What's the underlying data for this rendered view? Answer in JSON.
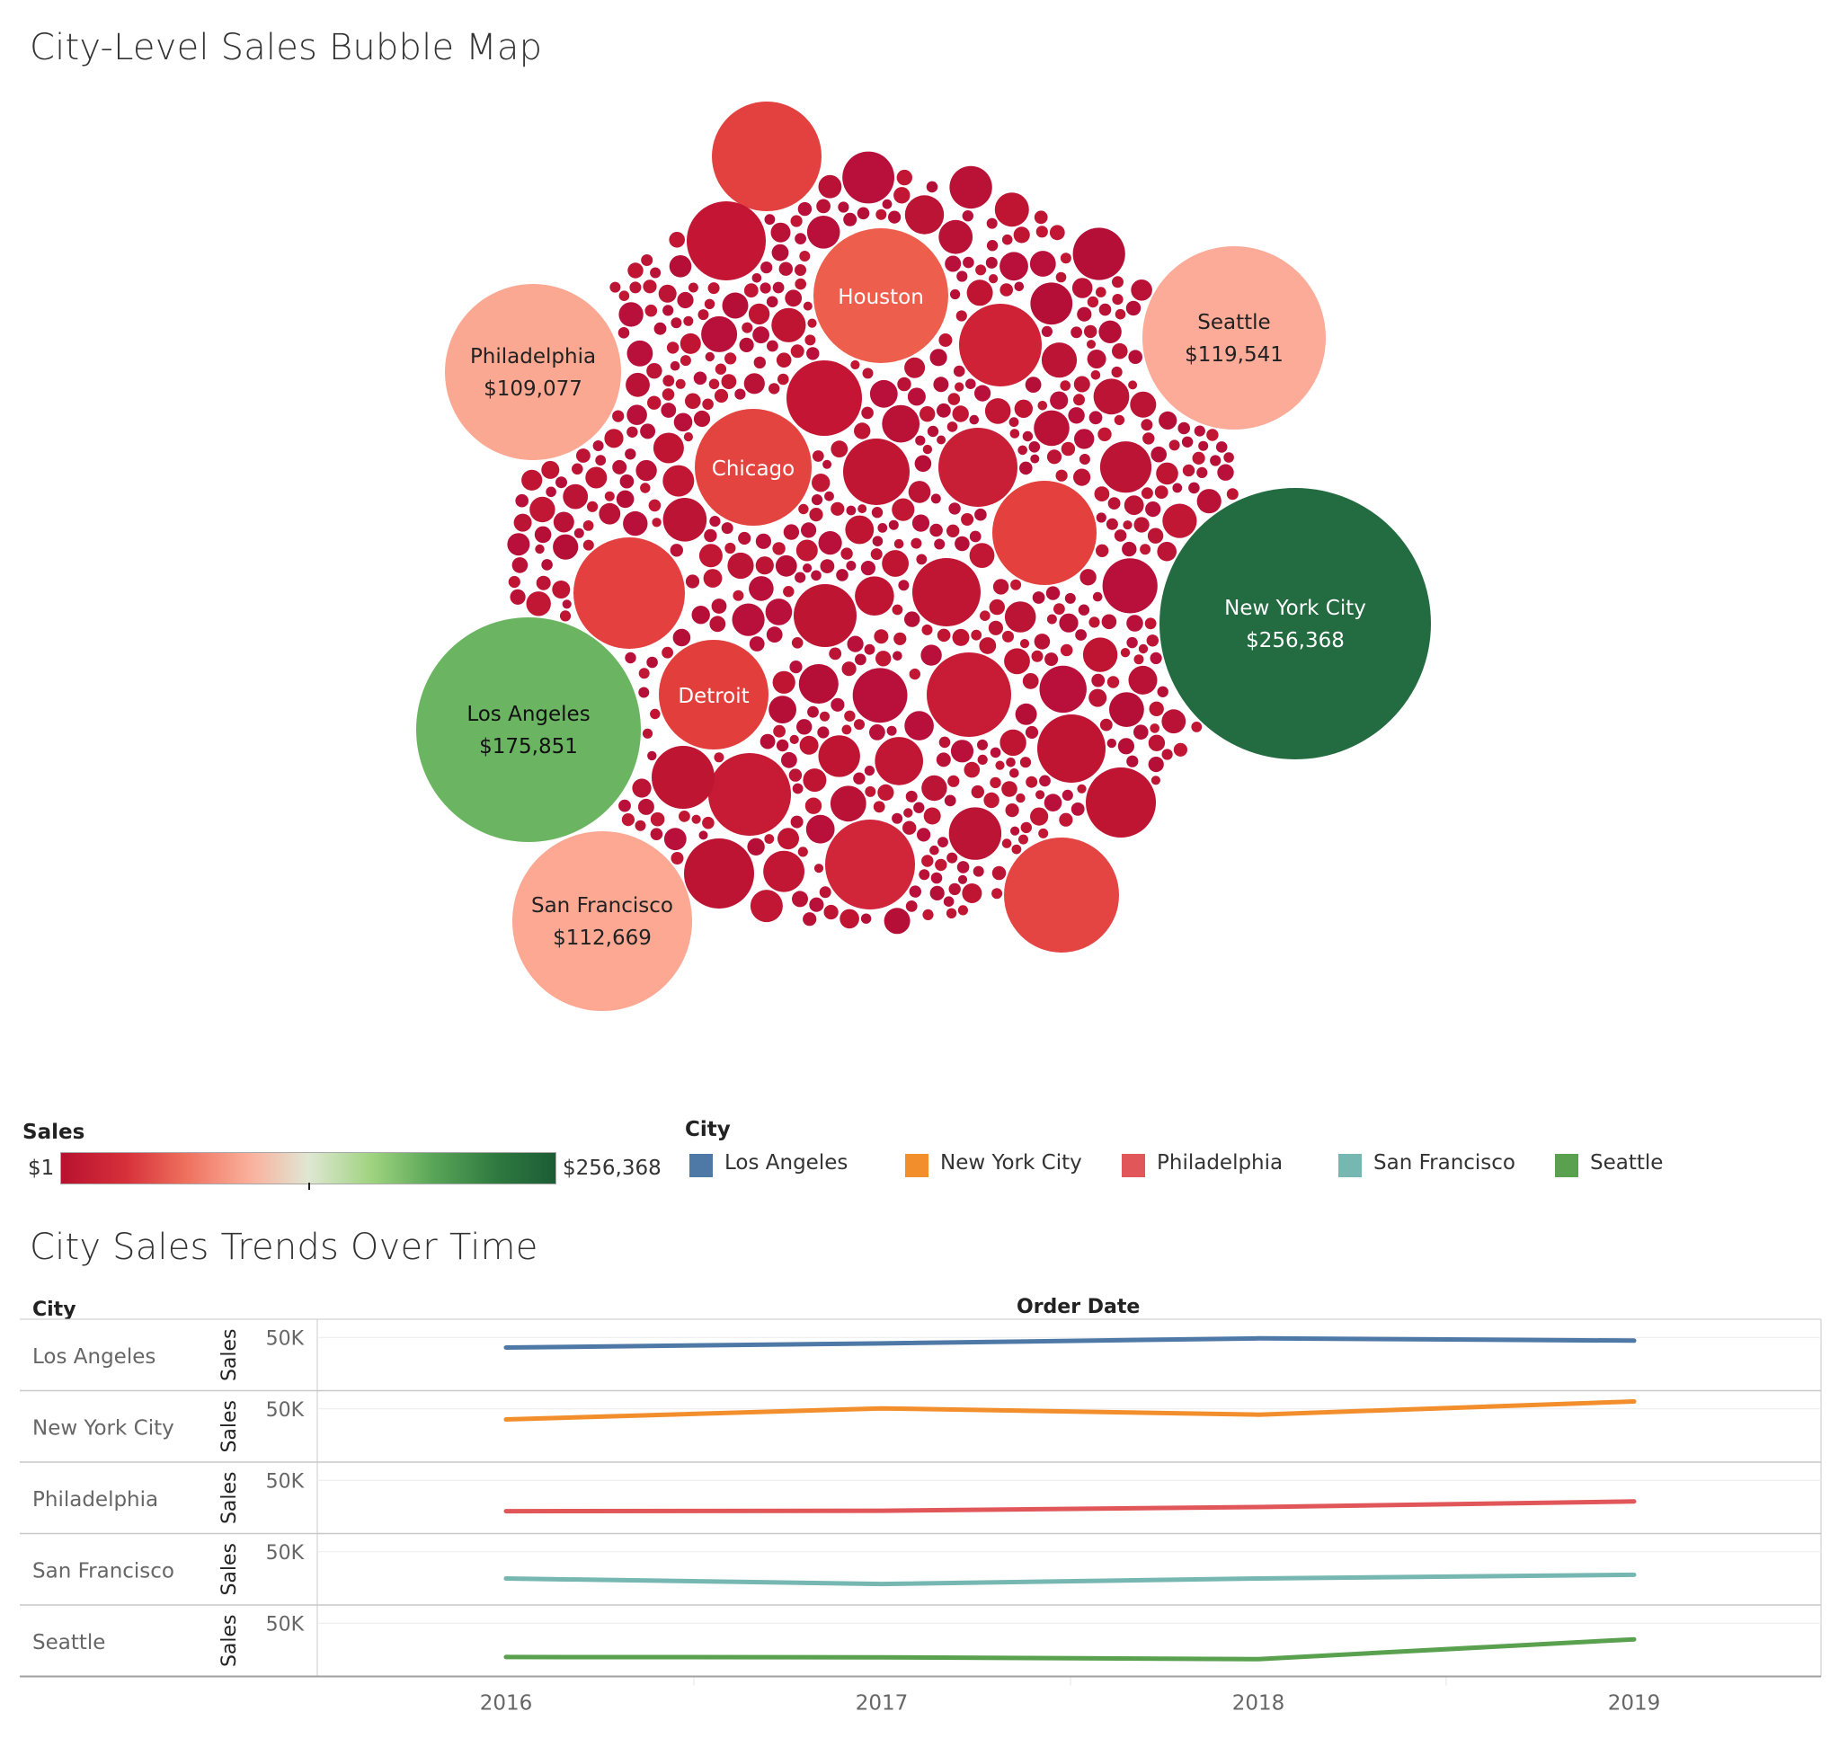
{
  "bubble_title": "City-Level Sales Bubble Map",
  "trend_title": "City Sales Trends Over Time",
  "sales_legend": {
    "title": "Sales",
    "min_label": "$1",
    "max_label": "$256,368",
    "ramp_colors": [
      "#b8112f",
      "#d6303b",
      "#ee6f5c",
      "#faaf9b",
      "#dfe7d3",
      "#9ed37f",
      "#5aa658",
      "#2f7a40",
      "#1c5c35"
    ]
  },
  "city_legend": {
    "title": "City",
    "items": [
      {
        "label": "Los Angeles",
        "color": "#4e79a7"
      },
      {
        "label": "New York City",
        "color": "#f28e2b"
      },
      {
        "label": "Philadelphia",
        "color": "#e15759"
      },
      {
        "label": "San Francisco",
        "color": "#76b7b2"
      },
      {
        "label": "Seattle",
        "color": "#59a14f"
      }
    ]
  },
  "chart_data": [
    {
      "type": "bubble",
      "title": "City-Level Sales Bubble Map",
      "color_encoding": "Sales",
      "color_range": [
        1,
        256368
      ],
      "labeled_bubbles": [
        {
          "city": "New York City",
          "sales": 256368,
          "value_label": "$256,368",
          "color": "#236b40",
          "text_color": "#ffffff"
        },
        {
          "city": "Los Angeles",
          "sales": 175851,
          "value_label": "$175,851",
          "color": "#6bb562",
          "text_color": "#111111"
        },
        {
          "city": "Seattle",
          "sales": 119541,
          "value_label": "$119,541",
          "color": "#fcab98",
          "text_color": "#222222"
        },
        {
          "city": "San Francisco",
          "sales": 112669,
          "value_label": "$112,669",
          "color": "#fca893",
          "text_color": "#222222"
        },
        {
          "city": "Philadelphia",
          "sales": 109077,
          "value_label": "$109,077",
          "color": "#fba892",
          "text_color": "#222222"
        },
        {
          "city": "Houston",
          "sales": 64505,
          "value_label": "",
          "color": "#ee5e4c",
          "text_color": "#ffffff"
        },
        {
          "city": "Chicago",
          "sales": 48540,
          "value_label": "",
          "color": "#e4443f",
          "text_color": "#ffffff"
        },
        {
          "city": "Detroit",
          "sales": 42447,
          "value_label": "",
          "color": "#e23f3c",
          "text_color": "#ffffff"
        }
      ]
    },
    {
      "type": "line",
      "title": "City Sales Trends Over Time",
      "x_header": "Order Date",
      "row_header": "City",
      "measure": "Sales",
      "x": [
        "2016",
        "2017",
        "2018",
        "2019"
      ],
      "y_tick_label": "50K",
      "series": [
        {
          "name": "Los Angeles",
          "values": [
            39000,
            43500,
            49000,
            46500
          ]
        },
        {
          "name": "New York City",
          "values": [
            38500,
            50500,
            43700,
            58000
          ]
        },
        {
          "name": "Philadelphia",
          "values": [
            16500,
            17000,
            21000,
            27000
          ]
        },
        {
          "name": "San Francisco",
          "values": [
            21000,
            15000,
            21000,
            25000
          ]
        },
        {
          "name": "Seattle",
          "values": [
            13300,
            13000,
            11000,
            32500
          ]
        }
      ]
    }
  ]
}
